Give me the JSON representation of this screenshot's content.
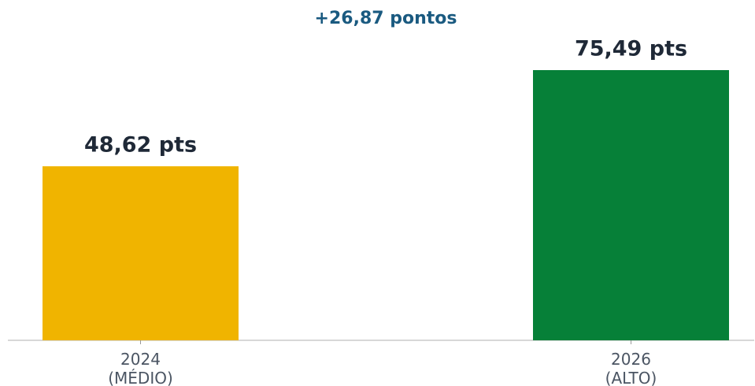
{
  "chart_data": {
    "type": "bar",
    "annotation": "+26,87 pontos",
    "categories": [
      "2024\n(MÉDIO)",
      "2026\n(ALTO)"
    ],
    "values": [
      48.62,
      75.49
    ],
    "value_labels": [
      "48,62 pts",
      "75,49 pts"
    ],
    "colors": [
      "#f0b400",
      "#068038"
    ],
    "ylim": [
      0,
      80
    ]
  }
}
